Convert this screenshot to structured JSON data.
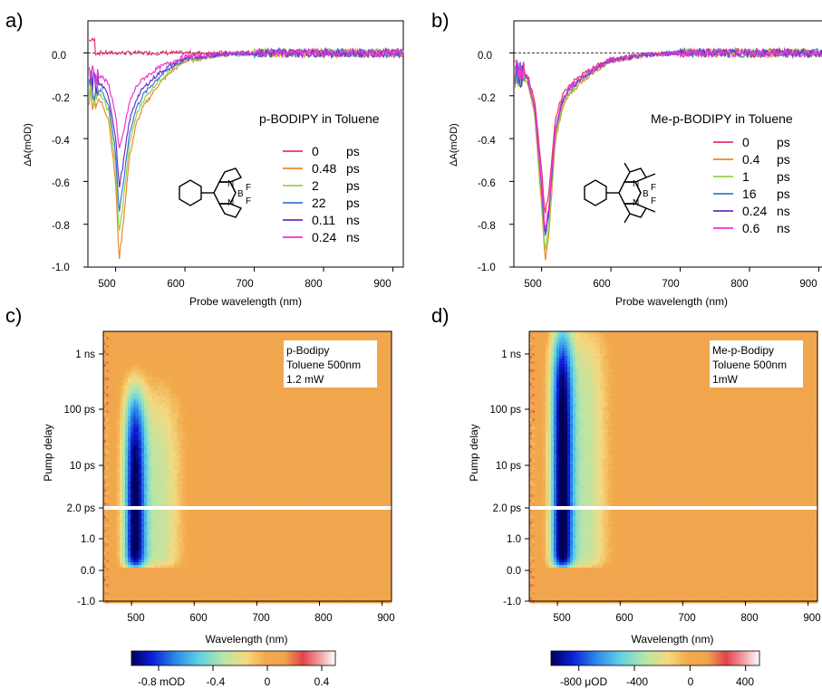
{
  "figure": {
    "panel_labels": [
      "a)",
      "b)",
      "c)",
      "d)"
    ]
  },
  "colors": {
    "series": [
      "#e8336e",
      "#ea8a2a",
      "#8fd44a",
      "#3b78d6",
      "#6a2fc8",
      "#ee33d4"
    ],
    "colormap": [
      "#00005a",
      "#0a1dd6",
      "#2f8ae8",
      "#5fd0e6",
      "#b6e6a8",
      "#f5d980",
      "#f2a94a",
      "#f0a450",
      "#e0444a",
      "#f2a6a8",
      "#ffffff"
    ],
    "background_map": "#f3aa4c"
  },
  "chart_data": [
    {
      "type": "line",
      "panel": "a)",
      "xlabel": "Probe wavelength (nm)",
      "ylabel": "ΔA(mOD)",
      "xlim": [
        460,
        915
      ],
      "ylim": [
        -1.0,
        0.15
      ],
      "xticks": [
        "500",
        "600",
        "700",
        "800",
        "900"
      ],
      "yticks": [
        "0.0",
        "-0.2",
        "-0.4",
        "-0.6",
        "-0.8",
        "-1.0"
      ],
      "annotation": "p-BODIPY in Toluene",
      "legend_placement": "right",
      "series": [
        {
          "name": "0 ps",
          "legend_value": "0",
          "legend_unit": "ps",
          "peak": 0.0
        },
        {
          "name": "0.48 ps",
          "legend_value": "0.48",
          "legend_unit": "ps",
          "peak": -0.97
        },
        {
          "name": "2 ps",
          "legend_value": "2",
          "legend_unit": "ps",
          "peak": -0.85
        },
        {
          "name": "22 ps",
          "legend_value": "22",
          "legend_unit": "ps",
          "peak": -0.75
        },
        {
          "name": "0.11 ns",
          "legend_value": "0.11",
          "legend_unit": "ns",
          "peak": -0.63
        },
        {
          "name": "0.24 ns",
          "legend_value": "0.24",
          "legend_unit": "ns",
          "peak": -0.46
        }
      ],
      "x": [
        460,
        470,
        480,
        490,
        500,
        505,
        510,
        520,
        530,
        540,
        560,
        580,
        600,
        650,
        700,
        750,
        800,
        850,
        900,
        915
      ],
      "shape": [
        0.2,
        0.22,
        0.24,
        0.32,
        0.62,
        1.0,
        0.85,
        0.5,
        0.34,
        0.26,
        0.16,
        0.09,
        0.04,
        0.01,
        0.0,
        0.0,
        0.0,
        0.0,
        0.0,
        0.0
      ]
    },
    {
      "type": "line",
      "panel": "b)",
      "xlabel": "Probe wavelength (nm)",
      "ylabel": "ΔA(mOD)",
      "xlim": [
        460,
        915
      ],
      "ylim": [
        -1.0,
        0.15
      ],
      "xticks": [
        "500",
        "600",
        "700",
        "800",
        "900"
      ],
      "yticks": [
        "0.0",
        "-0.2",
        "-0.4",
        "-0.6",
        "-0.8",
        "-1.0"
      ],
      "annotation": "Me-p-BODIPY in Toluene",
      "legend_placement": "right",
      "series": [
        {
          "name": "0 ps",
          "legend_value": "0",
          "legend_unit": "ps",
          "peak": -0.75
        },
        {
          "name": "0.4 ps",
          "legend_value": "0.4",
          "legend_unit": "ps",
          "peak": -0.98
        },
        {
          "name": "1 ps",
          "legend_value": "1",
          "legend_unit": "ps",
          "peak": -0.93
        },
        {
          "name": "16 ps",
          "legend_value": "16",
          "legend_unit": "ps",
          "peak": -0.87
        },
        {
          "name": "0.24 ns",
          "legend_value": "0.24",
          "legend_unit": "ns",
          "peak": -0.85
        },
        {
          "name": "0.6 ns",
          "legend_value": "0.6",
          "legend_unit": "ns",
          "peak": -0.83
        }
      ],
      "x": [
        460,
        470,
        480,
        490,
        500,
        505,
        510,
        520,
        530,
        540,
        560,
        580,
        600,
        650,
        700,
        750,
        800,
        850,
        900,
        915
      ],
      "shape": [
        0.1,
        0.12,
        0.14,
        0.3,
        0.72,
        1.0,
        0.88,
        0.42,
        0.26,
        0.2,
        0.13,
        0.08,
        0.04,
        0.01,
        0.0,
        0.0,
        0.0,
        0.0,
        0.0,
        0.0
      ]
    },
    {
      "type": "heatmap",
      "panel": "c)",
      "xlabel": "Wavelength (nm)",
      "ylabel": "Pump delay",
      "xlim": [
        455,
        915
      ],
      "xticks": [
        "500",
        "600",
        "700",
        "800",
        "900"
      ],
      "yticks": [
        "1 ns",
        "100 ps",
        "10 ps",
        "2.0 ps",
        "1.0",
        "0.0",
        "-1.0"
      ],
      "annotation": [
        "p-Bodipy",
        "Toluene 500nm",
        "1.2 mW"
      ],
      "colorbar_ticks": [
        "-0.8 mOD",
        "-0.4",
        "0",
        "0.4"
      ],
      "colorbar_range": [
        -1.0,
        0.5
      ],
      "colorbar_tick_values": [
        -0.8,
        -0.4,
        0,
        0.4
      ],
      "signal_peak_nm": 505,
      "signal_lifetime_ns": 0.25,
      "signal_min": -0.95
    },
    {
      "type": "heatmap",
      "panel": "d)",
      "xlabel": "Wavelength (nm)",
      "ylabel": "Pump delay",
      "xlim": [
        455,
        915
      ],
      "xticks": [
        "500",
        "600",
        "700",
        "800",
        "900"
      ],
      "yticks": [
        "1 ns",
        "100 ps",
        "10 ps",
        "2.0 ps",
        "1.0",
        "0.0",
        "-1.0"
      ],
      "annotation": [
        "Me-p-Bodipy",
        "Toluene 500nm",
        "1mW"
      ],
      "colorbar_ticks": [
        "-800 μOD",
        "-400",
        "0",
        "400"
      ],
      "colorbar_range": [
        -1000,
        500
      ],
      "colorbar_tick_values": [
        -800,
        -400,
        0,
        400
      ],
      "signal_peak_nm": 507,
      "signal_lifetime_ns": 3.0,
      "signal_min": -0.98
    }
  ]
}
